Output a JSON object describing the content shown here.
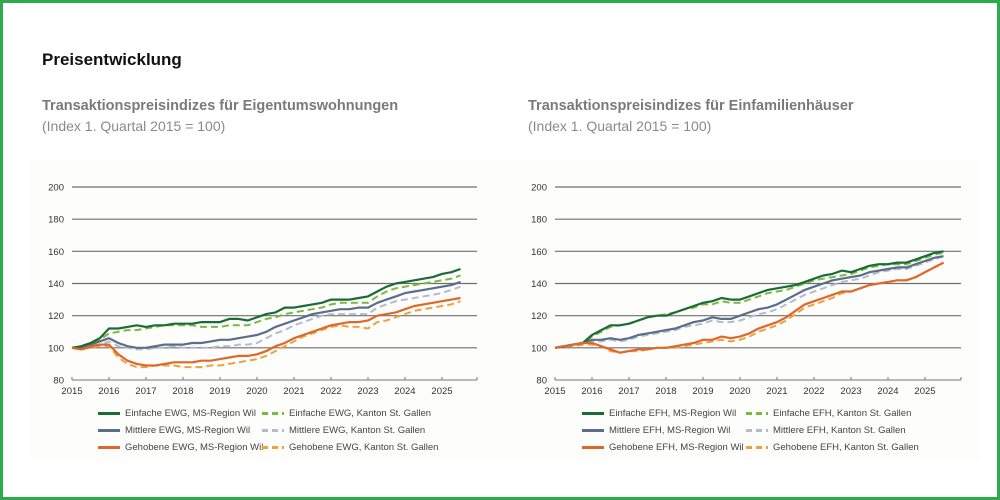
{
  "page": {
    "title": "Preisentwicklung",
    "frame_color": "#2eaa4a"
  },
  "chart_data": [
    {
      "type": "line",
      "title": "Transaktionspreisindizes für Eigentumswohnungen",
      "subtitle": "(Index 1. Quartal 2015 = 100)",
      "xlabel": "",
      "ylabel": "",
      "ylim": [
        80,
        200
      ],
      "yticks": [
        80,
        100,
        120,
        140,
        160,
        180,
        200
      ],
      "xlim": [
        2015,
        2025.85
      ],
      "xticks": [
        "2015",
        "2016",
        "2017",
        "2018",
        "2019",
        "2020",
        "2021",
        "2022",
        "2023",
        "2024",
        "2025"
      ],
      "grid": true,
      "legend_position": "bottom",
      "x_start": 2015.0,
      "x_step": 0.25,
      "series": [
        {
          "name": "Einfache EWG, MS-Region Wil",
          "color": "#1a6b35",
          "dash": false,
          "values": [
            100,
            101,
            103,
            106,
            112,
            112,
            113,
            114,
            113,
            114,
            114,
            115,
            115,
            115,
            116,
            116,
            116,
            118,
            118,
            117,
            119,
            121,
            122,
            125,
            125,
            126,
            127,
            128,
            130,
            130,
            130,
            131,
            132,
            135,
            138,
            140,
            141,
            142,
            143,
            144,
            146,
            147,
            149
          ]
        },
        {
          "name": "Einfache EWG, Kanton St. Gallen",
          "color": "#7cb83e",
          "dash": true,
          "values": [
            100,
            101,
            103,
            105,
            109,
            110,
            111,
            111,
            112,
            113,
            114,
            114,
            114,
            114,
            113,
            113,
            113,
            114,
            114,
            114,
            116,
            118,
            119,
            121,
            122,
            123,
            124,
            125,
            127,
            128,
            128,
            128,
            128,
            132,
            135,
            137,
            138,
            139,
            140,
            141,
            142,
            143,
            145
          ]
        },
        {
          "name": "Mittlere EWG, MS-Region Wil",
          "color": "#5a6e8c",
          "dash": false,
          "values": [
            100,
            100,
            102,
            104,
            106,
            103,
            101,
            100,
            100,
            101,
            102,
            102,
            102,
            103,
            103,
            104,
            105,
            105,
            106,
            107,
            108,
            110,
            113,
            115,
            117,
            119,
            121,
            122,
            123,
            124,
            124,
            125,
            125,
            128,
            130,
            132,
            134,
            135,
            136,
            137,
            138,
            139,
            141
          ]
        },
        {
          "name": "Mittlere EWG, Kanton St. Gallen",
          "color": "#b3bccb",
          "dash": true,
          "values": [
            100,
            100,
            101,
            102,
            104,
            101,
            100,
            99,
            99,
            100,
            100,
            101,
            100,
            100,
            100,
            100,
            101,
            101,
            102,
            102,
            103,
            106,
            109,
            111,
            114,
            116,
            118,
            120,
            121,
            121,
            121,
            121,
            121,
            125,
            127,
            129,
            130,
            131,
            132,
            133,
            134,
            136,
            138
          ]
        },
        {
          "name": "Gehobene EWG, MS-Region Wil",
          "color": "#e0672a",
          "dash": false,
          "values": [
            100,
            99,
            101,
            102,
            102,
            96,
            92,
            90,
            89,
            89,
            90,
            91,
            91,
            91,
            92,
            92,
            93,
            94,
            95,
            95,
            96,
            98,
            101,
            103,
            106,
            108,
            110,
            112,
            114,
            115,
            116,
            116,
            117,
            120,
            121,
            122,
            124,
            126,
            127,
            128,
            129,
            130,
            131
          ]
        },
        {
          "name": "Gehobene EWG, Kanton St. Gallen",
          "color": "#f0a040",
          "dash": true,
          "values": [
            100,
            99,
            100,
            101,
            101,
            94,
            90,
            88,
            88,
            89,
            89,
            89,
            88,
            88,
            88,
            89,
            89,
            90,
            91,
            92,
            93,
            95,
            98,
            101,
            104,
            107,
            109,
            111,
            113,
            114,
            113,
            113,
            112,
            116,
            117,
            119,
            121,
            123,
            124,
            125,
            126,
            127,
            129
          ]
        }
      ]
    },
    {
      "type": "line",
      "title": "Transaktionspreisindizes für Einfamilienhäuser",
      "subtitle": "(Index 1. Quartal 2015 = 100)",
      "xlabel": "",
      "ylabel": "",
      "ylim": [
        80,
        200
      ],
      "yticks": [
        80,
        100,
        120,
        140,
        160,
        180,
        200
      ],
      "xlim": [
        2015,
        2025.85
      ],
      "xticks": [
        "2015",
        "2016",
        "2017",
        "2018",
        "2019",
        "2020",
        "2021",
        "2022",
        "2023",
        "2024",
        "2025"
      ],
      "grid": true,
      "legend_position": "bottom",
      "x_start": 2015.0,
      "x_step": 0.25,
      "series": [
        {
          "name": "Einfache EFH, MS-Region Wil",
          "color": "#1a6b35",
          "dash": false,
          "values": [
            100,
            101,
            102,
            103,
            108,
            111,
            114,
            114,
            115,
            117,
            119,
            120,
            120,
            122,
            124,
            126,
            128,
            129,
            131,
            130,
            130,
            132,
            134,
            136,
            137,
            138,
            139,
            141,
            143,
            145,
            146,
            148,
            147,
            149,
            151,
            152,
            152,
            153,
            153,
            155,
            157,
            159,
            160
          ]
        },
        {
          "name": "Einfache EFH, Kanton St. Gallen",
          "color": "#7cb83e",
          "dash": true,
          "values": [
            100,
            101,
            102,
            103,
            107,
            110,
            113,
            114,
            115,
            117,
            119,
            120,
            121,
            122,
            124,
            125,
            127,
            127,
            129,
            128,
            128,
            130,
            132,
            134,
            135,
            136,
            138,
            140,
            142,
            143,
            144,
            145,
            146,
            148,
            150,
            151,
            152,
            152,
            152,
            154,
            156,
            158,
            159
          ]
        },
        {
          "name": "Mittlere EFH, MS-Region Wil",
          "color": "#5a6e8c",
          "dash": false,
          "values": [
            100,
            101,
            102,
            103,
            105,
            105,
            106,
            105,
            106,
            108,
            109,
            110,
            111,
            112,
            114,
            116,
            117,
            119,
            118,
            118,
            120,
            122,
            124,
            125,
            127,
            130,
            133,
            136,
            138,
            140,
            142,
            143,
            144,
            145,
            147,
            148,
            149,
            150,
            150,
            152,
            154,
            156,
            157
          ]
        },
        {
          "name": "Mittlere EFH, Kanton St. Gallen",
          "color": "#b3bccb",
          "dash": true,
          "values": [
            100,
            101,
            102,
            103,
            104,
            104,
            105,
            104,
            105,
            107,
            108,
            109,
            110,
            111,
            113,
            114,
            115,
            117,
            116,
            116,
            117,
            119,
            121,
            122,
            124,
            127,
            130,
            133,
            135,
            137,
            139,
            141,
            142,
            143,
            145,
            147,
            148,
            149,
            149,
            151,
            153,
            155,
            157
          ]
        },
        {
          "name": "Gehobene EFH, MS-Region Wil",
          "color": "#e0672a",
          "dash": false,
          "values": [
            100,
            101,
            102,
            103,
            103,
            101,
            99,
            97,
            98,
            99,
            99,
            100,
            100,
            101,
            102,
            103,
            105,
            105,
            107,
            106,
            107,
            109,
            112,
            114,
            116,
            119,
            123,
            127,
            129,
            131,
            133,
            135,
            135,
            137,
            139,
            140,
            141,
            142,
            142,
            144,
            147,
            150,
            153
          ]
        },
        {
          "name": "Gehobene EFH, Kanton St. Gallen",
          "color": "#f0a040",
          "dash": true,
          "values": [
            100,
            101,
            101,
            102,
            102,
            101,
            98,
            97,
            98,
            98,
            99,
            100,
            100,
            100,
            101,
            102,
            103,
            104,
            105,
            104,
            105,
            107,
            110,
            112,
            114,
            117,
            121,
            125,
            127,
            129,
            131,
            134,
            135,
            137,
            139,
            140,
            141,
            142,
            142,
            144,
            147,
            150,
            153
          ]
        }
      ]
    }
  ]
}
